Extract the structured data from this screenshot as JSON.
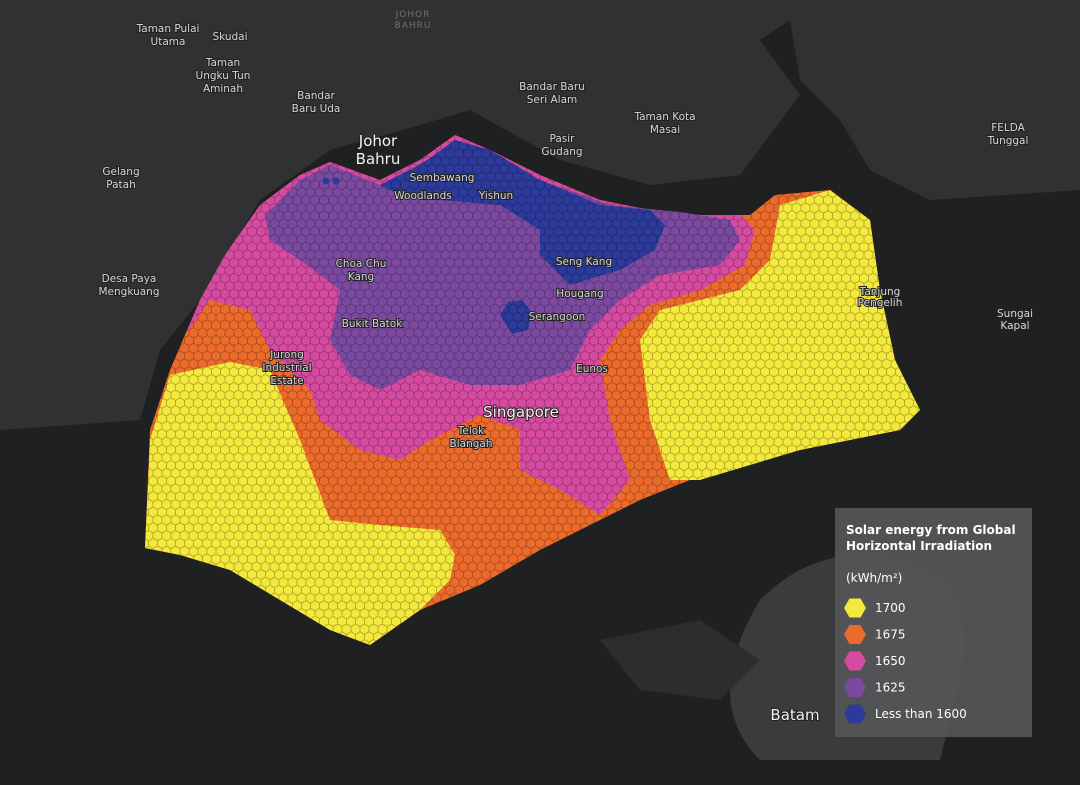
{
  "places": [
    {
      "lines": [
        "Taman Pulai",
        "Utama"
      ]
    },
    {
      "lines": [
        "Skudai"
      ]
    },
    {
      "lines": [
        "Taman",
        "Ungku Tun",
        "Aminah"
      ]
    },
    {
      "lines": [
        "JOHOR",
        "BAHRU"
      ]
    },
    {
      "lines": [
        "Bandar",
        "Baru Uda"
      ]
    },
    {
      "lines": [
        "Bandar Baru",
        "Seri Alam"
      ]
    },
    {
      "lines": [
        "Taman Kota",
        "Masai"
      ]
    },
    {
      "lines": [
        "Pasir",
        "Gudang"
      ]
    },
    {
      "lines": [
        "Johor",
        "Bahru"
      ]
    },
    {
      "lines": [
        "FELDA",
        "Tunggal"
      ]
    },
    {
      "lines": [
        "Gelang",
        "Patah"
      ]
    },
    {
      "lines": [
        "Sembawang"
      ]
    },
    {
      "lines": [
        "Woodlands"
      ]
    },
    {
      "lines": [
        "Yishun"
      ]
    },
    {
      "lines": [
        "Desa Paya",
        "Mengkuang"
      ]
    },
    {
      "lines": [
        "Choa Chu",
        "Kang"
      ]
    },
    {
      "lines": [
        "Seng Kang"
      ]
    },
    {
      "lines": [
        "Hougang"
      ]
    },
    {
      "lines": [
        "Tanjung",
        "Pengelih"
      ]
    },
    {
      "lines": [
        "Sungai",
        "Kapal"
      ]
    },
    {
      "lines": [
        "Serangoon"
      ]
    },
    {
      "lines": [
        "Bukit Batok"
      ]
    },
    {
      "lines": [
        "Jurong",
        "Industrial",
        "Estate"
      ]
    },
    {
      "lines": [
        "Eunos"
      ]
    },
    {
      "lines": [
        "Singapore"
      ]
    },
    {
      "lines": [
        "Telok",
        "Blangah"
      ]
    },
    {
      "lines": [
        "Batam"
      ]
    }
  ],
  "legend": {
    "title": [
      "Solar energy from Global",
      "Horizontal Irradiation"
    ],
    "unit": "(kWh/m²)",
    "items": [
      {
        "label": "1700",
        "color": "#f4e93c"
      },
      {
        "label": "1675",
        "color": "#ec6b2b"
      },
      {
        "label": "1650",
        "color": "#d64ba1"
      },
      {
        "label": "1625",
        "color": "#7b4aa0"
      },
      {
        "label": "Less than 1600",
        "color": "#2b3a9b"
      }
    ]
  }
}
